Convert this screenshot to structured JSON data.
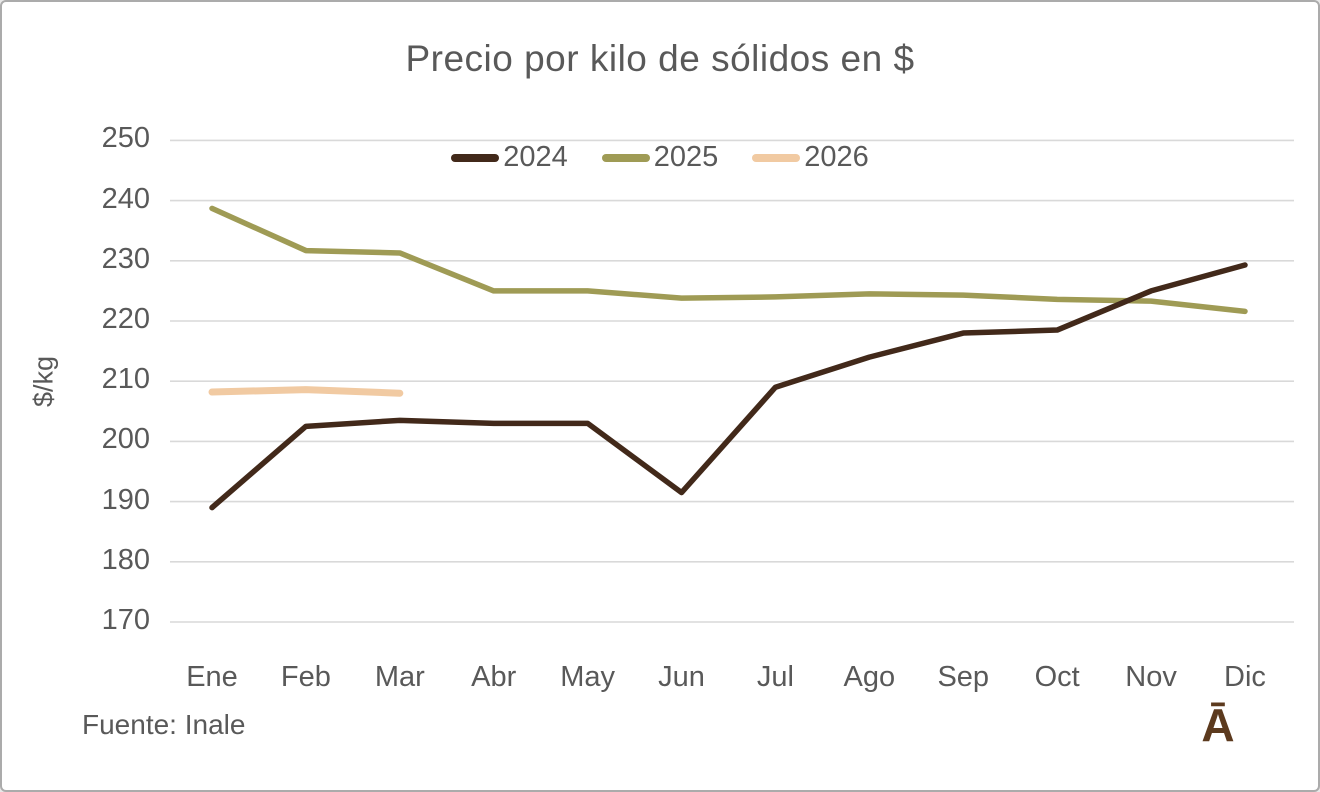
{
  "page": {
    "source_note": "Fuente: Inale",
    "logo_glyph": "Ā"
  },
  "colors": {
    "axis_text": "#595959",
    "gridline": "#d9d9d9",
    "border": "#ababab",
    "logo_brown": "#5c3a1e"
  },
  "chart_data": {
    "type": "line",
    "title": "Precio por kilo de sólidos en $",
    "xlabel": "",
    "ylabel": "$/kg",
    "categories": [
      "Ene",
      "Feb",
      "Mar",
      "Abr",
      "May",
      "Jun",
      "Jul",
      "Ago",
      "Sep",
      "Oct",
      "Nov",
      "Dic"
    ],
    "y_ticks": [
      170,
      180,
      190,
      200,
      210,
      220,
      230,
      240,
      250
    ],
    "ylim": [
      170,
      250
    ],
    "grid": true,
    "legend_position": "top-center",
    "series": [
      {
        "name": "2024",
        "color": "#42291a",
        "values": [
          189,
          202.5,
          203.5,
          203,
          203,
          191.5,
          209,
          214,
          218,
          218.5,
          225,
          229.3
        ]
      },
      {
        "name": "2025",
        "color": "#9f9b55",
        "values": [
          238.7,
          231.7,
          231.3,
          225,
          225,
          223.8,
          224,
          224.5,
          224.3,
          223.6,
          223.3,
          221.6
        ]
      },
      {
        "name": "2026",
        "color": "#f1caa2",
        "values": [
          208.2,
          208.6,
          208
        ]
      }
    ]
  }
}
